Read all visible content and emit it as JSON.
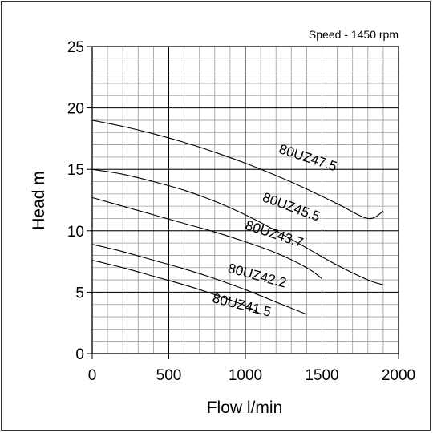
{
  "chart_data": {
    "type": "line",
    "title": "",
    "annotation": "Speed - 1450 rpm",
    "xlabel": "Flow l/min",
    "ylabel": "Head m",
    "xlim": [
      0,
      2000
    ],
    "ylim": [
      0,
      25
    ],
    "xticks": [
      0,
      500,
      1000,
      1500,
      2000
    ],
    "yticks": [
      0,
      5,
      10,
      15,
      20,
      25
    ],
    "xtick_labels": [
      "0",
      "500",
      "1000",
      "1500",
      "2000"
    ],
    "ytick_labels": [
      "0",
      "5",
      "10",
      "15",
      "20",
      "25"
    ],
    "minor_x_step": 100,
    "minor_y_step": 1,
    "grid": true,
    "legend": "none",
    "line_color": "#000000",
    "series": [
      {
        "name": "80UZ47.5",
        "x": [
          0,
          200,
          400,
          600,
          800,
          1000,
          1200,
          1400,
          1600,
          1800,
          1900
        ],
        "y": [
          19.0,
          18.5,
          17.9,
          17.2,
          16.4,
          15.5,
          14.5,
          13.4,
          12.2,
          11.0,
          11.6
        ]
      },
      {
        "name": "80UZ45.5",
        "x": [
          0,
          200,
          400,
          600,
          800,
          1000,
          1200,
          1400,
          1600,
          1800,
          1900
        ],
        "y": [
          15.0,
          14.6,
          14.0,
          13.3,
          12.4,
          11.3,
          10.0,
          8.6,
          7.2,
          6.0,
          5.6
        ]
      },
      {
        "name": "80UZ43.7",
        "x": [
          0,
          200,
          400,
          600,
          800,
          1000,
          1200,
          1400,
          1500
        ],
        "y": [
          12.7,
          12.0,
          11.3,
          10.6,
          9.9,
          9.1,
          8.2,
          7.0,
          6.1
        ]
      },
      {
        "name": "80UZ42.2",
        "x": [
          0,
          200,
          400,
          600,
          800,
          1000,
          1200,
          1400
        ],
        "y": [
          8.9,
          8.3,
          7.6,
          6.9,
          6.1,
          5.2,
          4.2,
          3.2
        ]
      },
      {
        "name": "80UZ41.5",
        "x": [
          0,
          200,
          400,
          600,
          800,
          1000,
          1100
        ],
        "y": [
          7.6,
          7.0,
          6.3,
          5.6,
          4.8,
          3.9,
          3.2
        ]
      }
    ],
    "labels": [
      {
        "text": "80UZ47.5",
        "x": 1400,
        "y": 15.6,
        "angle": 18
      },
      {
        "text": "80UZ45.5",
        "x": 1290,
        "y": 11.6,
        "angle": 20
      },
      {
        "text": "80UZ43.7",
        "x": 1180,
        "y": 9.4,
        "angle": 18
      },
      {
        "text": "80UZ42.2",
        "x": 1070,
        "y": 6.0,
        "angle": 15
      },
      {
        "text": "80UZ41.5",
        "x": 970,
        "y": 3.6,
        "angle": 14
      }
    ]
  }
}
